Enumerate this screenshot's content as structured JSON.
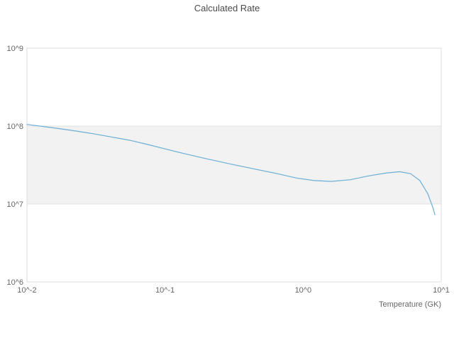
{
  "chart_data": {
    "type": "line",
    "title": "Calculated Rate",
    "xlabel": "Temperature (GK)",
    "ylabel": "",
    "x_scale": "log",
    "y_scale": "log",
    "xlim": [
      0.01,
      10
    ],
    "ylim": [
      1000000.0,
      1000000000.0
    ],
    "x_ticks": [
      "10^-2",
      "10^-1",
      "10^0",
      "10^1"
    ],
    "x_tick_values": [
      0.01,
      0.1,
      1,
      10
    ],
    "y_ticks": [
      "10^6",
      "10^7",
      "10^8",
      "10^9"
    ],
    "y_tick_values": [
      1000000.0,
      10000000.0,
      100000000.0,
      1000000000.0
    ],
    "grid": "horizontal",
    "legend": "none",
    "band": {
      "y_from": 10000000.0,
      "y_to": 100000000.0,
      "color": "#f2f2f2"
    },
    "colors": {
      "line": "#6baed6",
      "grid": "#e3e3e3",
      "border": "#dddddd",
      "tick_text": "#666666",
      "title_text": "#4a4a4a"
    },
    "series": [
      {
        "name": "rate",
        "x": [
          0.01,
          0.013,
          0.017,
          0.022,
          0.03,
          0.04,
          0.055,
          0.075,
          0.1,
          0.14,
          0.2,
          0.3,
          0.45,
          0.65,
          0.9,
          1.2,
          1.6,
          2.2,
          3.0,
          4.0,
          5.0,
          6.0,
          7.0,
          8.0,
          8.7,
          9.0
        ],
        "y": [
          105000000.0,
          99000000.0,
          93000000.0,
          87000000.0,
          80000000.0,
          73000000.0,
          66000000.0,
          58000000.0,
          51000000.0,
          44000000.0,
          38000000.0,
          32500000.0,
          28000000.0,
          24500000.0,
          21500000.0,
          20000000.0,
          19500000.0,
          20500000.0,
          23000000.0,
          25000000.0,
          26000000.0,
          24500000.0,
          20000000.0,
          13500000.0,
          9000000.0,
          7300000.0
        ]
      }
    ]
  }
}
